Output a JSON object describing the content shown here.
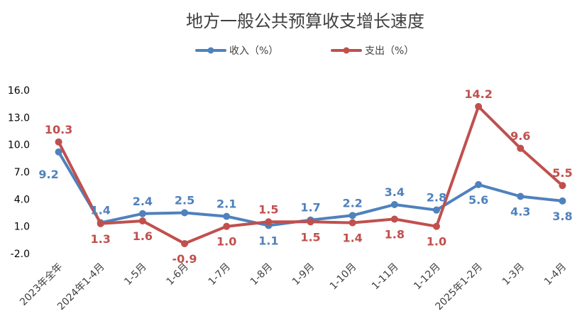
{
  "chart_data": {
    "type": "line",
    "title": "地方一般公共预算收支增长速度",
    "xlabel": "",
    "ylabel": "",
    "categories": [
      "2023年全年",
      "2024年1-4月",
      "1-5月",
      "1-6月",
      "1-7月",
      "1-8月",
      "1-9月",
      "1-10月",
      "1-11月",
      "1-12月",
      "2025年1-2月",
      "1-3月",
      "1-4月"
    ],
    "series": [
      {
        "name": "收入（%）",
        "color": "#4F81BD",
        "values": [
          9.2,
          1.4,
          2.4,
          2.5,
          2.1,
          1.1,
          1.7,
          2.2,
          3.4,
          2.8,
          5.6,
          4.3,
          3.8
        ],
        "labels": [
          "9.2",
          "1.4",
          "2.4",
          "2.5",
          "2.1",
          "1.1",
          "1.7",
          "2.2",
          "3.4",
          "2.8",
          "5.6",
          "4.3",
          "3.8"
        ]
      },
      {
        "name": "支出（%）",
        "color": "#C0504D",
        "values": [
          10.3,
          1.3,
          1.6,
          -0.9,
          1.0,
          1.5,
          1.5,
          1.4,
          1.8,
          1.0,
          14.2,
          9.6,
          5.5
        ],
        "labels": [
          "10.3",
          "1.3",
          "1.6",
          "-0.9",
          "1.0",
          "1.5",
          "1.5",
          "1.4",
          "1.8",
          "1.0",
          "14.2",
          "9.6",
          "5.5"
        ]
      }
    ],
    "yticks": [
      "-2.0",
      "1.0",
      "4.0",
      "7.0",
      "10.0",
      "13.0",
      "16.0"
    ],
    "ylim": [
      -2,
      16
    ],
    "grid": false,
    "legend": "top"
  }
}
